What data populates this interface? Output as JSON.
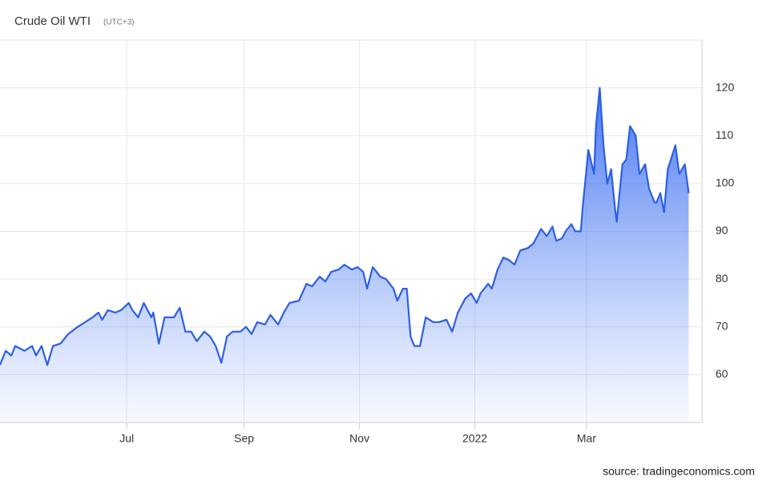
{
  "chart_data": {
    "type": "area",
    "title": "Crude Oil WTI",
    "subtitle": "(UTC+3)",
    "source": "source: tradingeconomics.com",
    "x": [
      0,
      3,
      6,
      8,
      13,
      17,
      19,
      22,
      25,
      28,
      32,
      36,
      41,
      45,
      49,
      52,
      54,
      57,
      61,
      64,
      68,
      70,
      73,
      76,
      80,
      81,
      84,
      87,
      92,
      95,
      98,
      101,
      104,
      108,
      111,
      114,
      117,
      120,
      123,
      127,
      130,
      133,
      136,
      140,
      143,
      147,
      150,
      153,
      158,
      162,
      165,
      169,
      172,
      175,
      179,
      182,
      186,
      189,
      192,
      194,
      197,
      201,
      204,
      208,
      210,
      213,
      215,
      217,
      219,
      222,
      225,
      229,
      232,
      236,
      239,
      242,
      246,
      249,
      252,
      254,
      258,
      260,
      263,
      266,
      269,
      272,
      275,
      279,
      282,
      286,
      289,
      292,
      294,
      297,
      299,
      302,
      304,
      307,
      308,
      311,
      314,
      315,
      317,
      319,
      321,
      323,
      325,
      326,
      329,
      331,
      333,
      336,
      338,
      341,
      343,
      346,
      347,
      349,
      351,
      353,
      357,
      359,
      362,
      364
    ],
    "series": [
      {
        "name": "Crude Oil WTI",
        "color": "#2c5fe3",
        "values": [
          62,
          65,
          64,
          66,
          65,
          66,
          64,
          66,
          62,
          66,
          66.5,
          68.5,
          70,
          71,
          72,
          73,
          71.5,
          73.5,
          73,
          73.5,
          75,
          73.5,
          72,
          75,
          72,
          73,
          66.5,
          72,
          72,
          74,
          69,
          69,
          67,
          69,
          68,
          66,
          62.5,
          68,
          69,
          69,
          70,
          68.5,
          71,
          70.5,
          72.5,
          70.5,
          73,
          75,
          75.5,
          79,
          78.5,
          80.5,
          79.5,
          81.5,
          82,
          83,
          82,
          82.5,
          81.5,
          78,
          82.5,
          80.5,
          80,
          78,
          75.5,
          78,
          78,
          68,
          66,
          66,
          72,
          71,
          71,
          71.5,
          69,
          73,
          76,
          77,
          75,
          77,
          79,
          78,
          82,
          84.5,
          84,
          83,
          86,
          86.5,
          87.5,
          90.5,
          89,
          91,
          88,
          88.5,
          90,
          91.5,
          90,
          90,
          95,
          107,
          102,
          112,
          120,
          108,
          100,
          103,
          95,
          92,
          104,
          105,
          112,
          110,
          102,
          104,
          99,
          96,
          96,
          98,
          94,
          103,
          108,
          102,
          104,
          98
        ]
      }
    ],
    "xlim": [
      0,
      371
    ],
    "xticks": [
      {
        "value": 67,
        "label": "Jul"
      },
      {
        "value": 129,
        "label": "Sep"
      },
      {
        "value": 190,
        "label": "Nov"
      },
      {
        "value": 251,
        "label": "2022"
      },
      {
        "value": 310,
        "label": "Mar"
      }
    ],
    "ylim": [
      50,
      130
    ],
    "yticks": [
      60,
      70,
      80,
      90,
      100,
      110,
      120
    ],
    "grid": true
  }
}
